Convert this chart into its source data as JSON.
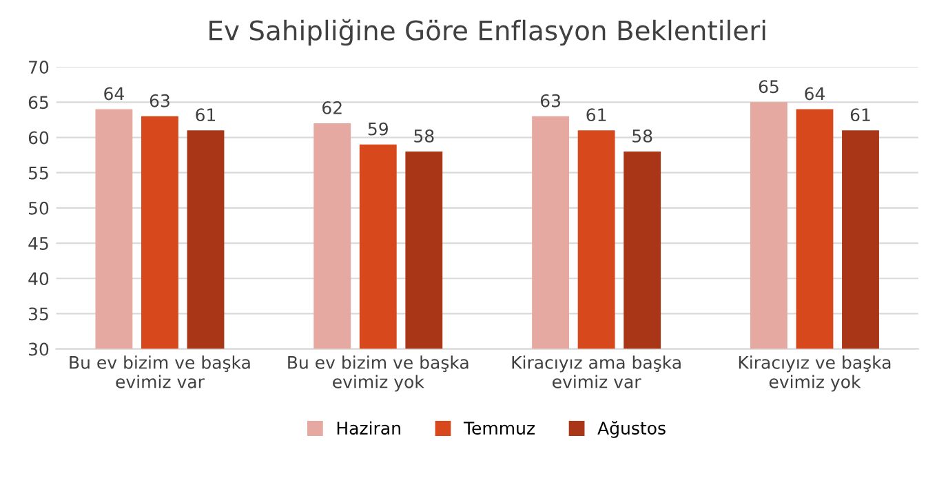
{
  "chart_data": {
    "type": "bar",
    "title": "Ev Sahipliğine Göre Enflasyon Beklentileri",
    "categories": [
      "Bu ev bizim ve başka\nevimiz var",
      "Bu ev bizim ve başka\nevimiz yok",
      "Kiracıyız ama başka\nevimiz var",
      "Kiracıyız ve başka\nevimiz yok"
    ],
    "series": [
      {
        "name": "Haziran",
        "color": "#e6a9a1",
        "values": [
          64,
          62,
          63,
          65
        ]
      },
      {
        "name": "Temmuz",
        "color": "#d7491c",
        "values": [
          63,
          59,
          61,
          64
        ]
      },
      {
        "name": "Ağustos",
        "color": "#a93617",
        "values": [
          61,
          58,
          58,
          61
        ]
      }
    ],
    "ylim": [
      30,
      70
    ],
    "yticks": [
      30,
      35,
      40,
      45,
      50,
      55,
      60,
      65,
      70
    ],
    "grid": "y",
    "legend": "bottom",
    "data_labels": true
  }
}
